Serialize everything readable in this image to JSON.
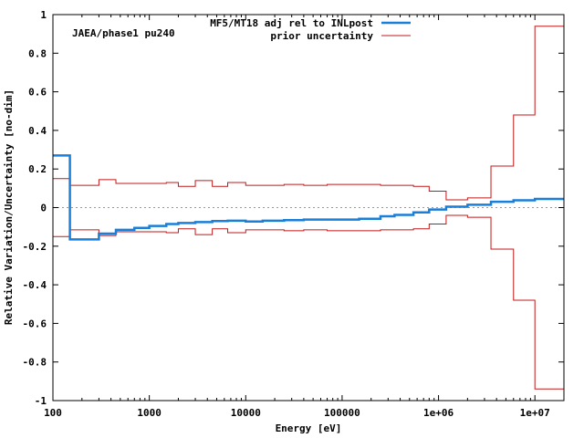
{
  "chart_data": {
    "type": "line",
    "step": true,
    "xscale": "log",
    "xlim": [
      100,
      20000000
    ],
    "ylim": [
      -1,
      1
    ],
    "xlabel": "Energy [eV]",
    "ylabel": "Relative Variation/Uncertainty [no-dim]",
    "annotation": "JAEA/phase1 pu240",
    "legend_position": "top-right",
    "x_ticks": [
      100,
      1000,
      10000,
      100000,
      1000000,
      10000000
    ],
    "x_tick_labels": [
      "100",
      "1000",
      "10000",
      "100000",
      "1e+06",
      "1e+07"
    ],
    "y_ticks": [
      -1,
      -0.8,
      -0.6,
      -0.4,
      -0.2,
      0,
      0.2,
      0.4,
      0.6,
      0.8,
      1
    ],
    "y_tick_labels": [
      "-1",
      "-0.8",
      "-0.6",
      "-0.4",
      "-0.2",
      "0",
      "0.2",
      "0.4",
      "0.6",
      "0.8",
      "1"
    ],
    "zero_line": true,
    "bin_edges": [
      100,
      150,
      300,
      450,
      700,
      1000,
      1500,
      2000,
      3000,
      4500,
      6500,
      10000,
      15000,
      25000,
      40000,
      70000,
      100000,
      150000,
      250000,
      350000,
      550000,
      800000,
      1200000,
      2000000,
      3500000,
      6000000,
      10000000,
      20000000
    ],
    "series": [
      {
        "name": "MF5/MT18 adj rel to INLpost",
        "color": "#1a7fd8",
        "values": [
          0.27,
          -0.165,
          -0.135,
          -0.115,
          -0.105,
          -0.095,
          -0.085,
          -0.08,
          -0.075,
          -0.07,
          -0.068,
          -0.072,
          -0.068,
          -0.065,
          -0.062,
          -0.062,
          -0.062,
          -0.058,
          -0.045,
          -0.038,
          -0.025,
          -0.01,
          0.005,
          0.015,
          0.03,
          0.038,
          0.045
        ]
      },
      {
        "name": "prior uncertainty",
        "color": "#c01818",
        "mirror": true,
        "values": [
          0.15,
          0.115,
          0.145,
          0.125,
          0.125,
          0.125,
          0.13,
          0.11,
          0.14,
          0.11,
          0.13,
          0.115,
          0.115,
          0.12,
          0.115,
          0.12,
          0.12,
          0.12,
          0.115,
          0.115,
          0.11,
          0.085,
          0.04,
          0.05,
          0.215,
          0.48,
          0.94
        ]
      }
    ]
  }
}
